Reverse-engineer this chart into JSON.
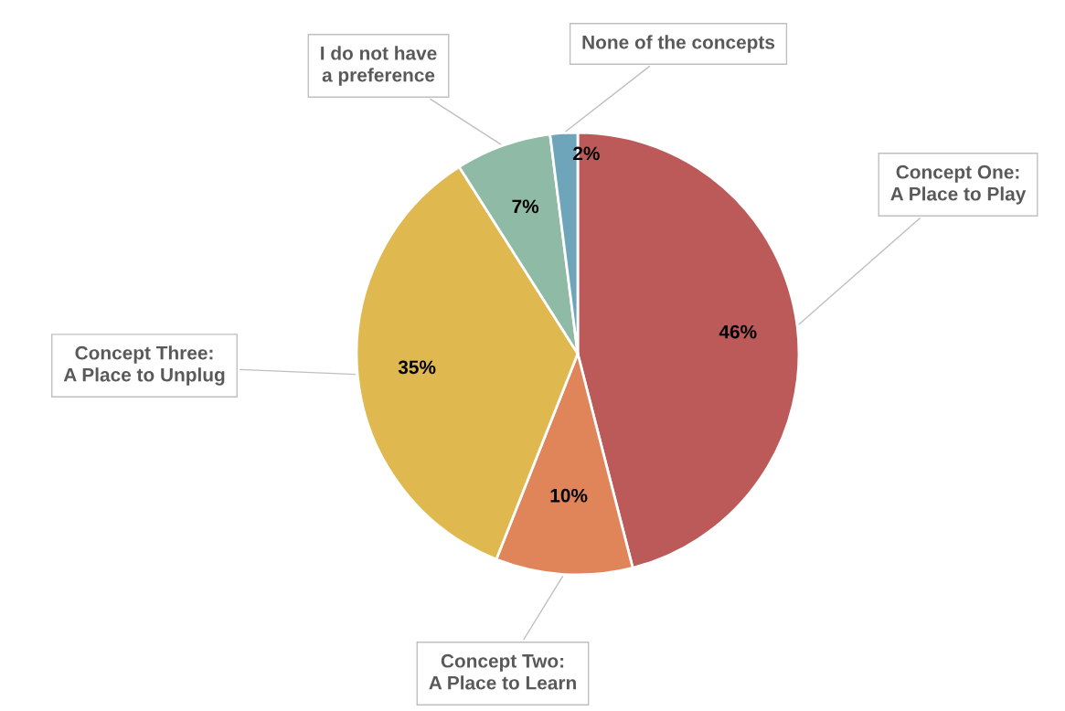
{
  "chart_data": {
    "type": "pie",
    "categories": [
      "Concept One:\nA Place to Play",
      "Concept Two:\nA Place to Learn",
      "Concept Three:\nA Place to Unplug",
      "I do not have\na preference",
      "None of the concepts"
    ],
    "values": [
      46,
      10,
      35,
      7,
      2
    ],
    "colors": [
      "#bc5a5a",
      "#e0855a",
      "#e0b850",
      "#8fbaa5",
      "#6fa5bb"
    ],
    "value_labels": [
      "46%",
      "10%",
      "35%",
      "7%",
      "2%"
    ]
  }
}
